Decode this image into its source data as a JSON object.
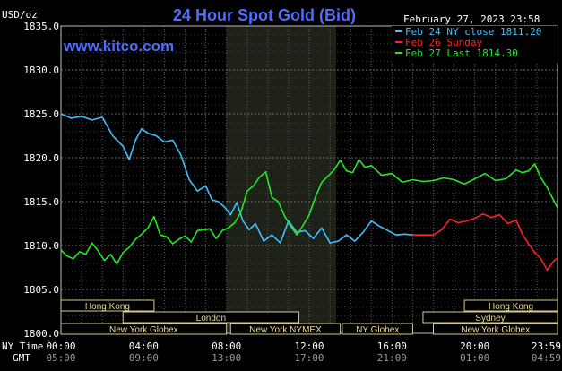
{
  "chart_data": {
    "type": "line",
    "title": "24 Hour Spot Gold (Bid)",
    "ylabel": "USD/oz",
    "ylim": [
      1800,
      1835
    ],
    "yticks": [
      "1835.0",
      "1830.0",
      "1825.0",
      "1820.0",
      "1815.0",
      "1810.0",
      "1805.0",
      "1800.0"
    ],
    "xticks_ny": [
      "00:00",
      "04:00",
      "08:00",
      "12:00",
      "16:00",
      "20:00",
      "23:59"
    ],
    "xticks_gmt": [
      "05:00",
      "09:00",
      "13:00",
      "17:00",
      "21:00",
      "01:00",
      "04:59"
    ],
    "row_label_ny": "NY Time",
    "row_label_gmt": "GMT",
    "date_label": "February 27, 2023 23:58",
    "website": "www.kitco.com",
    "grid": true,
    "legend_position": "top-right",
    "legend": [
      {
        "label": "Feb 24 NY close 1811.20",
        "color": "#3fc0ff"
      },
      {
        "label": "Feb 26 Sunday",
        "color": "#ff2020"
      },
      {
        "label": "Feb 27 Last 1814.30",
        "color": "#26e626"
      }
    ],
    "highlight_hours": [
      8,
      13.3
    ],
    "sessions": [
      {
        "label": "Hong Kong",
        "row": 0,
        "start": 0,
        "end": 4.5
      },
      {
        "label": "London",
        "row": 1,
        "start": 3,
        "end": 11.5
      },
      {
        "label": "New York Globex",
        "row": 2,
        "start": 0,
        "end": 8
      },
      {
        "label": "New York NYMEX",
        "row": 2,
        "start": 8.2,
        "end": 13.5
      },
      {
        "label": "NY Globex",
        "row": 2,
        "start": 13.6,
        "end": 17
      },
      {
        "label": "Hong Kong",
        "row": 0,
        "start": 19.5,
        "end": 24
      },
      {
        "label": "Sydney",
        "row": 1,
        "start": 17.5,
        "end": 24
      },
      {
        "label": "New York Globex",
        "row": 2,
        "start": 18,
        "end": 24
      }
    ],
    "series": [
      {
        "name": "Feb 24 NY close 1811.20",
        "color": "#3fc0ff",
        "x": [
          0,
          0.5,
          1,
          1.5,
          2,
          2.5,
          3,
          3.3,
          3.6,
          3.9,
          4.2,
          4.6,
          5,
          5.4,
          5.8,
          6.2,
          6.6,
          7,
          7.3,
          7.6,
          7.9,
          8.2,
          8.5,
          8.8,
          9.1,
          9.4,
          9.8,
          10.2,
          10.6,
          11,
          11.4,
          11.8,
          12.2,
          12.6,
          13,
          13.4,
          13.8,
          14.2,
          14.6,
          15,
          15.4,
          15.8,
          16.2,
          16.6,
          17
        ],
        "y": [
          1825,
          1824.5,
          1824.7,
          1824.3,
          1824.6,
          1822.5,
          1821.3,
          1819.8,
          1822,
          1823.3,
          1822.8,
          1822.5,
          1821.8,
          1822,
          1820.3,
          1817.5,
          1816.2,
          1816.8,
          1815.2,
          1815,
          1814.4,
          1813.5,
          1814.9,
          1812.8,
          1811.8,
          1812.5,
          1810.5,
          1811.2,
          1810.3,
          1812.8,
          1811.5,
          1811.7,
          1810.8,
          1812,
          1810.3,
          1810.5,
          1811.2,
          1810.5,
          1811.5,
          1812.8,
          1812.2,
          1811.7,
          1811.2,
          1811.3,
          1811.2
        ]
      },
      {
        "name": "Feb 26 Sunday",
        "color": "#ff2020",
        "x": [
          17,
          18,
          18.4,
          18.8,
          19.2,
          19.6,
          20,
          20.4,
          20.8,
          21.2,
          21.6,
          22,
          22.3,
          22.6,
          22.9,
          23.2,
          23.5,
          23.8,
          24
        ],
        "y": [
          1811.2,
          1811.2,
          1811.8,
          1813,
          1812.6,
          1812.8,
          1813.1,
          1813.6,
          1813.2,
          1813.5,
          1812.5,
          1812.9,
          1811.3,
          1810.2,
          1809.2,
          1808.5,
          1807.2,
          1808.2,
          1808.6
        ]
      },
      {
        "name": "Feb 27 Last 1814.30",
        "color": "#26e626",
        "x": [
          0,
          0.3,
          0.6,
          0.9,
          1.2,
          1.5,
          1.8,
          2.1,
          2.4,
          2.7,
          3,
          3.3,
          3.6,
          3.9,
          4.2,
          4.5,
          4.8,
          5.1,
          5.4,
          5.7,
          6,
          6.3,
          6.6,
          6.9,
          7.2,
          7.5,
          7.8,
          8.1,
          8.4,
          8.7,
          9,
          9.3,
          9.6,
          9.9,
          10.2,
          10.5,
          10.8,
          11.1,
          11.4,
          11.7,
          12,
          12.3,
          12.6,
          12.9,
          13.2,
          13.5,
          13.8,
          14.1,
          14.4,
          14.7,
          15,
          15.5,
          16,
          16.5,
          17,
          17.5,
          18,
          18.5,
          19,
          19.5,
          20,
          20.5,
          21,
          21.5,
          22,
          22.3,
          22.6,
          22.9,
          23.2,
          23.5,
          23.8,
          24
        ],
        "y": [
          1809.5,
          1808.8,
          1808.5,
          1809.3,
          1809,
          1810.3,
          1809.4,
          1808.3,
          1809,
          1807.9,
          1809.2,
          1809.8,
          1810.7,
          1811.3,
          1812,
          1813.3,
          1811.2,
          1811,
          1810.2,
          1810.7,
          1811.1,
          1810.4,
          1811.7,
          1811.8,
          1811.9,
          1810.8,
          1811.7,
          1812,
          1812.6,
          1813.8,
          1816.2,
          1816.8,
          1817.8,
          1818.4,
          1815.5,
          1815,
          1813.4,
          1812.2,
          1811.2,
          1812.3,
          1813.5,
          1815.5,
          1817.2,
          1817.9,
          1818.6,
          1819.7,
          1818.5,
          1818.3,
          1819.8,
          1818.9,
          1819.1,
          1818,
          1818.2,
          1817.2,
          1817.5,
          1817.3,
          1817.4,
          1817.7,
          1817.5,
          1817,
          1817.6,
          1818.2,
          1817.4,
          1817.6,
          1818.6,
          1818.3,
          1818.5,
          1819.3,
          1817.7,
          1816.6,
          1815.2,
          1814.3
        ]
      }
    ]
  }
}
